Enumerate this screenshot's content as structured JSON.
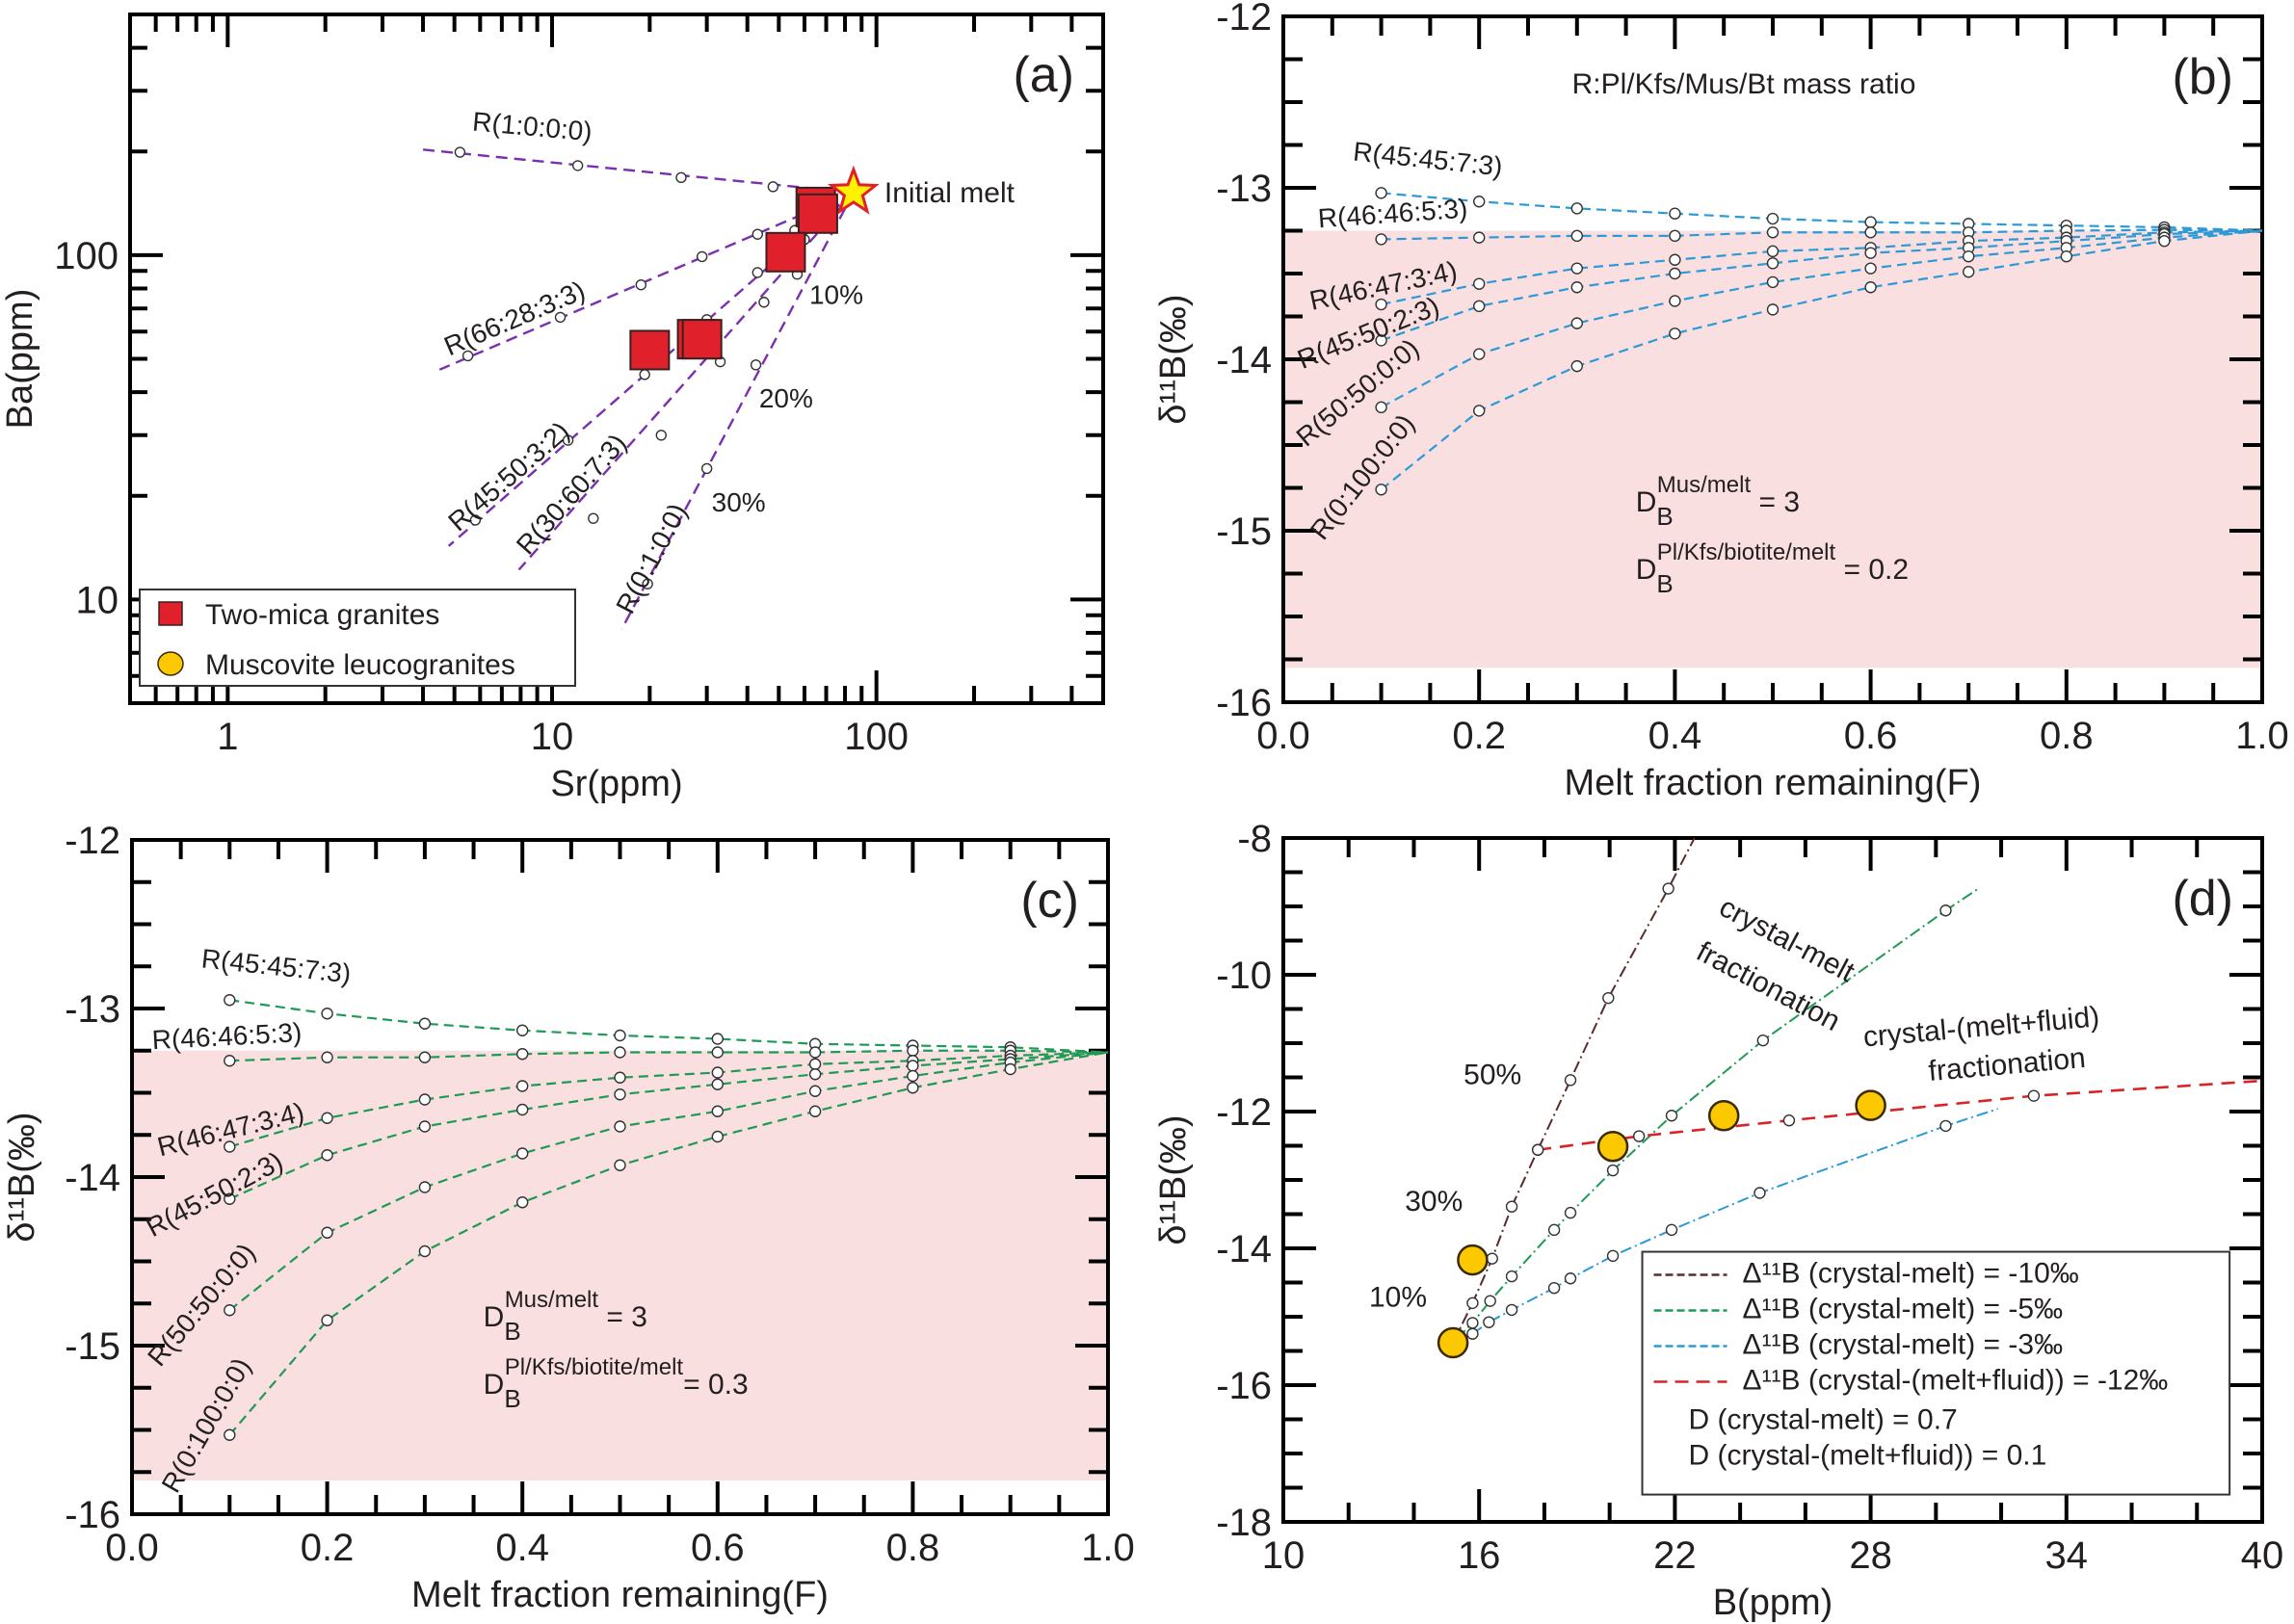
{
  "figure": {
    "panels": [
      "a",
      "b",
      "c",
      "d"
    ]
  },
  "chart_data": [
    {
      "id": "a",
      "type": "scatter",
      "panel_label": "(a)",
      "xlabel": "Sr(ppm)",
      "ylabel": "Ba(ppm)",
      "xscale": "log",
      "yscale": "log",
      "xlim": [
        0.5,
        500
      ],
      "ylim": [
        5,
        500
      ],
      "xticks": [
        1,
        10,
        100
      ],
      "xtick_labels": [
        "1",
        "10",
        "100"
      ],
      "yticks": [
        10,
        100
      ],
      "ytick_labels": [
        "10",
        "100"
      ],
      "line_color": "#7b2fb0",
      "initial_melt": {
        "label": "Initial melt",
        "x": 85,
        "y": 152
      },
      "model_lines": [
        {
          "name": "R(1:0:0:0)",
          "end": [
            3.9,
            203
          ],
          "points": [
            [
              48,
              158
            ],
            [
              25,
              168
            ],
            [
              12,
              182
            ],
            [
              5.2,
              199
            ]
          ]
        },
        {
          "name": "R(66:28:3:3)",
          "end": [
            4.5,
            46.5
          ],
          "points": [
            [
              43,
              115
            ],
            [
              29,
              99
            ],
            [
              18.8,
              82
            ],
            [
              10.6,
              66
            ],
            [
              5.5,
              51
            ]
          ]
        },
        {
          "name": "R(45:50:3:2)",
          "end": [
            4.8,
            14.3
          ],
          "points": [
            [
              56,
              118
            ],
            [
              43,
              89
            ],
            [
              30,
              65
            ],
            [
              19.3,
              45
            ],
            [
              11.2,
              29
            ],
            [
              5.8,
              17
            ]
          ]
        },
        {
          "name": "R(30:60:7:3)",
          "end": [
            7.9,
            12.2
          ],
          "points": [
            [
              58,
              103
            ],
            [
              45,
              73
            ],
            [
              33,
              49
            ],
            [
              21.7,
              30
            ],
            [
              13.4,
              17.2
            ]
          ]
        },
        {
          "name": "R(0:1:0:0)",
          "end": [
            16.4,
            8.2
          ],
          "points": [
            [
              60,
              111
            ],
            [
              57,
              88
            ],
            [
              42.5,
              48
            ],
            [
              30,
              24
            ],
            [
              19.7,
              11.1
            ]
          ]
        }
      ],
      "percent_labels": [
        {
          "text": "10%",
          "x": 60,
          "y": 80
        },
        {
          "text": "20%",
          "x": 42,
          "y": 40
        },
        {
          "text": "30%",
          "x": 30,
          "y": 20
        }
      ],
      "series": [
        {
          "name": "Two-mica granites",
          "marker": "square",
          "color": "#e0202a",
          "x": [
            65,
            66,
            52.5,
            20,
            28,
            29
          ],
          "y": [
            138,
            132,
            102,
            53,
            57,
            57
          ]
        }
      ],
      "legend": {
        "position": "bottom-left",
        "entries": [
          {
            "label": "Two-mica granites",
            "marker": "square",
            "color": "#e0202a"
          },
          {
            "label": "Muscovite leucogranites",
            "marker": "circle",
            "color": "#fcc900"
          }
        ]
      }
    },
    {
      "id": "b",
      "type": "line",
      "panel_label": "(b)",
      "title": "R:Pl/Kfs/Mus/Bt mass ratio",
      "xlabel": "Melt fraction remaining(F)",
      "ylabel": "δ¹¹B(‰)",
      "xlim": [
        0,
        1
      ],
      "ylim": [
        -16,
        -12
      ],
      "xticks": [
        0,
        0.2,
        0.4,
        0.6,
        0.8,
        1.0
      ],
      "xtick_labels": [
        "0.0",
        "0.2",
        "0.4",
        "0.6",
        "0.8",
        "1.0"
      ],
      "yticks": [
        -16,
        -15,
        -14,
        -13,
        -12
      ],
      "ytick_labels": [
        "-16",
        "-15",
        "-14",
        "-13",
        "-12"
      ],
      "shaded_band": {
        "y_from": -15.8,
        "y_to": -13.25,
        "color": "#f9dfe0"
      },
      "line_color": "#2b9ad6",
      "x": [
        0.1,
        0.2,
        0.3,
        0.4,
        0.5,
        0.6,
        0.7,
        0.8,
        0.9,
        1.0
      ],
      "series": [
        {
          "name": "R(45:45:7:3)",
          "values": [
            -13.03,
            -13.08,
            -13.12,
            -13.15,
            -13.18,
            -13.2,
            -13.21,
            -13.22,
            -13.23,
            -13.25
          ]
        },
        {
          "name": "R(46:46:5:3)",
          "values": [
            -13.3,
            -13.29,
            -13.28,
            -13.28,
            -13.26,
            -13.26,
            -13.26,
            -13.25,
            -13.245,
            -13.25
          ]
        },
        {
          "name": "R(46:47:3:4)",
          "values": [
            -13.68,
            -13.56,
            -13.47,
            -13.42,
            -13.37,
            -13.35,
            -13.31,
            -13.29,
            -13.26,
            -13.25
          ]
        },
        {
          "name": "R(45:50:2:3)",
          "values": [
            -13.89,
            -13.69,
            -13.58,
            -13.5,
            -13.44,
            -13.38,
            -13.35,
            -13.31,
            -13.27,
            -13.25
          ]
        },
        {
          "name": "R(50:50:0:0)",
          "values": [
            -14.28,
            -13.97,
            -13.79,
            -13.66,
            -13.55,
            -13.47,
            -13.4,
            -13.35,
            -13.29,
            -13.25
          ]
        },
        {
          "name": "R(0:100:0:0)",
          "values": [
            -14.76,
            -14.3,
            -14.04,
            -13.85,
            -13.71,
            -13.58,
            -13.49,
            -13.4,
            -13.31,
            -13.25
          ]
        }
      ],
      "annotations": [
        {
          "base": "D",
          "sub": "B",
          "sup": "Mus/melt",
          "rest": " = 3"
        },
        {
          "base": "D",
          "sub": "B",
          "sup": "Pl/Kfs/biotite/melt",
          "rest": " = 0.2"
        }
      ]
    },
    {
      "id": "c",
      "type": "line",
      "panel_label": "(c)",
      "xlabel": "Melt fraction remaining(F)",
      "ylabel": "δ¹¹B(‰)",
      "xlim": [
        0,
        1
      ],
      "ylim": [
        -16,
        -12
      ],
      "xticks": [
        0,
        0.2,
        0.4,
        0.6,
        0.8,
        1.0
      ],
      "xtick_labels": [
        "0.0",
        "0.2",
        "0.4",
        "0.6",
        "0.8",
        "1.0"
      ],
      "yticks": [
        -16,
        -15,
        -14,
        -13,
        -12
      ],
      "ytick_labels": [
        "-16",
        "-15",
        "-14",
        "-13",
        "-12"
      ],
      "shaded_band": {
        "y_from": -15.8,
        "y_to": -13.25,
        "color": "#f9dfe0"
      },
      "line_color": "#1f9a55",
      "x": [
        0.1,
        0.2,
        0.3,
        0.4,
        0.5,
        0.6,
        0.7,
        0.8,
        0.9,
        1.0
      ],
      "series": [
        {
          "name": "R(45:45:7:3)",
          "values": [
            -12.95,
            -13.03,
            -13.09,
            -13.13,
            -13.16,
            -13.18,
            -13.21,
            -13.22,
            -13.23,
            -13.26
          ]
        },
        {
          "name": "R(46:46:5:3)",
          "values": [
            -13.31,
            -13.29,
            -13.29,
            -13.27,
            -13.26,
            -13.26,
            -13.26,
            -13.25,
            -13.25,
            -13.26
          ]
        },
        {
          "name": "R(46:47:3:4)",
          "values": [
            -13.82,
            -13.65,
            -13.54,
            -13.46,
            -13.41,
            -13.38,
            -13.33,
            -13.31,
            -13.28,
            -13.26
          ]
        },
        {
          "name": "R(45:50:2:3)",
          "values": [
            -14.13,
            -13.87,
            -13.7,
            -13.6,
            -13.51,
            -13.45,
            -13.39,
            -13.34,
            -13.3,
            -13.26
          ]
        },
        {
          "name": "R(50:50:0:0)",
          "values": [
            -14.79,
            -14.33,
            -14.06,
            -13.86,
            -13.7,
            -13.61,
            -13.49,
            -13.4,
            -13.32,
            -13.26
          ]
        },
        {
          "name": "R(0:100:0:0)",
          "values": [
            -15.53,
            -14.85,
            -14.44,
            -14.15,
            -13.93,
            -13.76,
            -13.61,
            -13.47,
            -13.36,
            -13.26
          ]
        }
      ],
      "annotations": [
        {
          "base": "D",
          "sub": "B",
          "sup": "Mus/melt",
          "rest": " = 3"
        },
        {
          "base": "D",
          "sub": "B",
          "sup": "Pl/Kfs/biotite/melt",
          "rest": "= 0.3"
        }
      ]
    },
    {
      "id": "d",
      "type": "line",
      "panel_label": "(d)",
      "xlabel": "B(ppm)",
      "ylabel": "δ¹¹B(‰)",
      "xlim": [
        10,
        40
      ],
      "ylim": [
        -18,
        -8
      ],
      "xticks": [
        10,
        16,
        22,
        28,
        34,
        40
      ],
      "xtick_labels": [
        "10",
        "16",
        "22",
        "28",
        "34",
        "40"
      ],
      "yticks": [
        -18,
        -16,
        -14,
        -12,
        -10,
        -8
      ],
      "ytick_labels": [
        "-18",
        "-16",
        "-14",
        "-12",
        "-10",
        "-8"
      ],
      "series": [
        {
          "name": "Δ11B (crystal-melt) = -10‰",
          "color": "#5b2b2b",
          "x": [
            15.2,
            15.8,
            16.4,
            17.0,
            17.8,
            18.8,
            19.96,
            21.8,
            22.6
          ],
          "y": [
            -15.38,
            -14.8,
            -14.15,
            -13.39,
            -12.56,
            -11.54,
            -10.34,
            -8.74,
            -8.0
          ],
          "points_idx": [
            1,
            2,
            3,
            4,
            5,
            6,
            7
          ]
        },
        {
          "name": "Δ11B (crystal-melt) = -5‰",
          "color": "#1f9a55",
          "x": [
            15.2,
            15.8,
            16.34,
            17.0,
            18.3,
            18.8,
            20.1,
            21.9,
            24.7,
            30.3,
            31.3
          ],
          "y": [
            -15.38,
            -15.09,
            -14.77,
            -14.41,
            -13.73,
            -13.48,
            -12.86,
            -12.06,
            -10.96,
            -9.06,
            -8.74
          ],
          "points_idx": [
            1,
            2,
            3,
            4,
            5,
            6,
            7,
            8,
            9
          ]
        },
        {
          "name": "Δ11B (crystal-melt) = -3‰",
          "color": "#2b9ad6",
          "x": [
            15.2,
            15.8,
            16.3,
            17.0,
            18.3,
            18.8,
            20.1,
            21.9,
            24.6,
            30.3,
            31.9
          ],
          "y": [
            -15.38,
            -15.25,
            -15.08,
            -14.9,
            -14.58,
            -14.44,
            -14.11,
            -13.73,
            -13.19,
            -12.21,
            -11.96
          ],
          "points_idx": [
            1,
            2,
            3,
            4,
            5,
            6,
            7,
            8,
            9
          ]
        },
        {
          "name": "Δ11B (crystal-(melt+fluid)) = -12‰",
          "color": "#d82424",
          "x": [
            17.8,
            20.9,
            25.5,
            33.0,
            40.0
          ],
          "y": [
            -12.56,
            -12.36,
            -12.13,
            -11.77,
            -11.55
          ],
          "points_idx": [
            0,
            1,
            2,
            3
          ]
        }
      ],
      "samples": {
        "name": "Muscovite leucogranites",
        "color": "#fcc900",
        "x": [
          15.2,
          15.8,
          20.1,
          23.5,
          28.0
        ],
        "y": [
          -15.38,
          -14.17,
          -12.51,
          -12.06,
          -11.91
        ]
      },
      "percent_labels": [
        {
          "text": "10%",
          "x": 14.4,
          "y": -14.85
        },
        {
          "text": "30%",
          "x": 15.5,
          "y": -13.45
        },
        {
          "text": "50%",
          "x": 17.3,
          "y": -11.6
        }
      ],
      "region_labels": [
        {
          "lines": [
            "crystal-melt",
            "fractionation"
          ]
        },
        {
          "lines": [
            "crystal-(melt+fluid)",
            "fractionation"
          ]
        }
      ],
      "legend": {
        "position": "bottom-right",
        "entries": [
          {
            "label": "Δ¹¹B (crystal-melt) = -10‰",
            "color": "#5b2b2b"
          },
          {
            "label": "Δ¹¹B (crystal-melt) = -5‰",
            "color": "#1f9a55"
          },
          {
            "label": "Δ¹¹B (crystal-melt) = -3‰",
            "color": "#2b9ad6"
          },
          {
            "label": "Δ¹¹B (crystal-(melt+fluid)) = -12‰",
            "color": "#d82424"
          }
        ],
        "notes": [
          "D (crystal-melt) = 0.7",
          "D (crystal-(melt+fluid)) = 0.1"
        ]
      }
    }
  ]
}
